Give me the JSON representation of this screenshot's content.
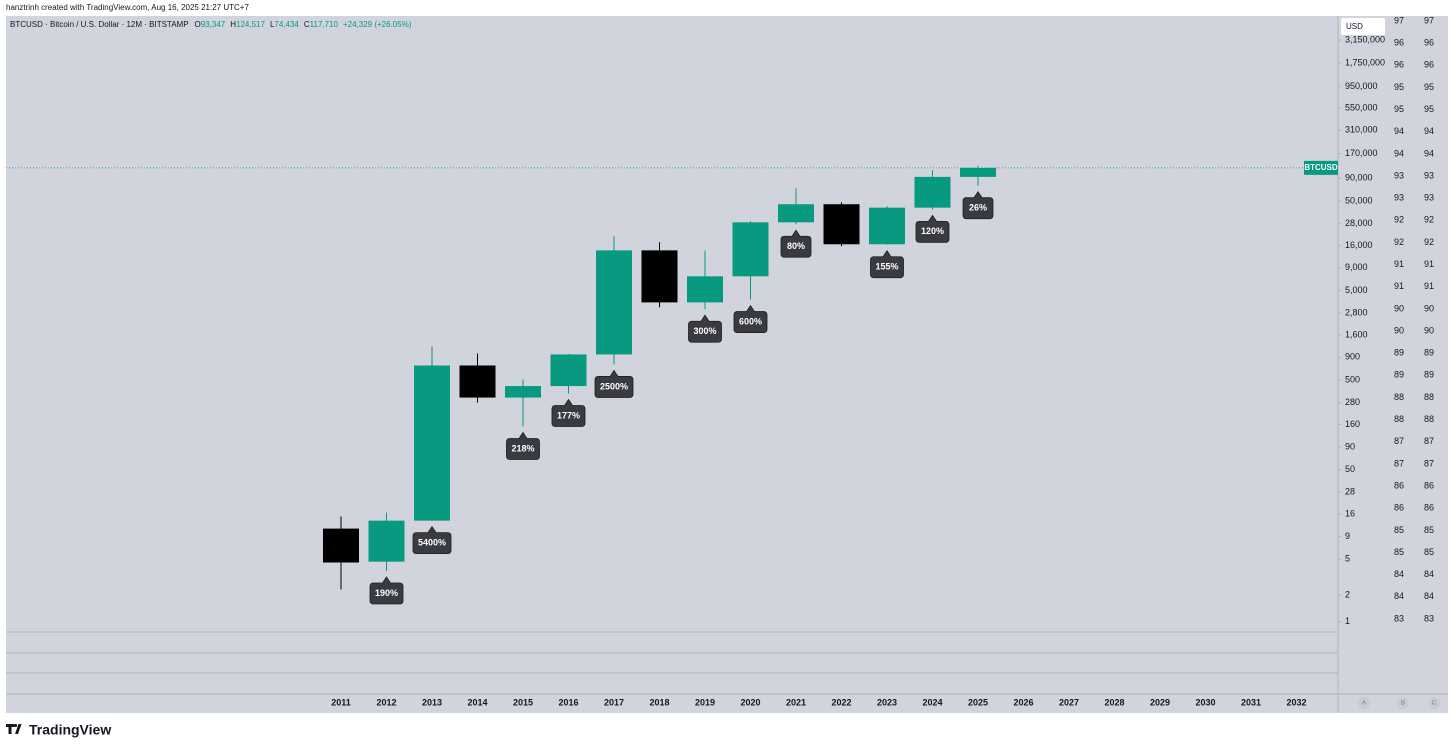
{
  "header": {
    "credit": "hanztrinh created with TradingView.com, Aug 16, 2025 21:27 UTC+7",
    "symbol": "BTCUSD · Bitcoin / U.S. Dollar · 12M · BITSTAMP",
    "ohlc": [
      {
        "label": "O",
        "value": "93,347"
      },
      {
        "label": "H",
        "value": "124,517"
      },
      {
        "label": "L",
        "value": "74,434"
      },
      {
        "label": "C",
        "value": "117,710"
      }
    ],
    "change": "+24,329 (+26.05%)"
  },
  "chart_data": {
    "type": "candlestick",
    "categories": [
      "2011",
      "2012",
      "2013",
      "2014",
      "2015",
      "2016",
      "2017",
      "2018",
      "2019",
      "2020",
      "2021",
      "2022",
      "2023",
      "2024",
      "2025",
      "2026",
      "2027",
      "2028",
      "2029",
      "2030",
      "2031",
      "2032"
    ],
    "open": [
      11,
      4.7,
      13.5,
      730,
      320,
      430,
      970,
      14100,
      3700,
      7230,
      29000,
      46200,
      16500,
      42300,
      93347,
      null,
      null,
      null,
      null,
      null,
      null,
      null
    ],
    "high": [
      15,
      16.6,
      1190,
      995,
      509,
      980,
      20300,
      17400,
      14000,
      29800,
      69700,
      48600,
      44000,
      111000,
      124517,
      null,
      null,
      null,
      null,
      null,
      null,
      null
    ],
    "low": [
      2.3,
      3.7,
      13.5,
      282,
      152,
      355,
      750,
      3250,
      3100,
      3980,
      27600,
      15700,
      16300,
      40500,
      74434,
      null,
      null,
      null,
      null,
      null,
      null,
      null
    ],
    "close": [
      4.6,
      13.5,
      730,
      320,
      430,
      970,
      14100,
      3700,
      7230,
      29000,
      46200,
      16500,
      42300,
      93347,
      117710,
      null,
      null,
      null,
      null,
      null,
      null,
      null
    ],
    "percent_labels": [
      null,
      "190%",
      "5400%",
      null,
      "218%",
      "177%",
      "2500%",
      null,
      "300%",
      "600%",
      "80%",
      null,
      "155%",
      "120%",
      "26%",
      null,
      null,
      null,
      null,
      null,
      null,
      null
    ],
    "up_color": "#089981",
    "down_color": "#000000",
    "log_scale": true,
    "ylim": [
      0.77,
      5850000
    ],
    "yticks": [
      {
        "value": 3150000,
        "label": "3,150,000"
      },
      {
        "value": 1750000,
        "label": "1,750,000"
      },
      {
        "value": 950000,
        "label": "950,000"
      },
      {
        "value": 550000,
        "label": "550,000"
      },
      {
        "value": 310000,
        "label": "310,000"
      },
      {
        "value": 170000,
        "label": "170,000"
      },
      {
        "value": 90000,
        "label": "90,000"
      },
      {
        "value": 50000,
        "label": "50,000"
      },
      {
        "value": 28000,
        "label": "28,000"
      },
      {
        "value": 16000,
        "label": "16,000"
      },
      {
        "value": 9000,
        "label": "9,000"
      },
      {
        "value": 5000,
        "label": "5,000"
      },
      {
        "value": 2800,
        "label": "2,800"
      },
      {
        "value": 1600,
        "label": "1,600"
      },
      900,
      500,
      280,
      160,
      90,
      50,
      28,
      16,
      9,
      5,
      2,
      1
    ],
    "currency": "USD",
    "price_label": "BTCUSD",
    "right_scale_a": [
      97,
      96,
      96,
      95,
      95,
      94,
      94,
      93,
      93,
      92,
      92,
      91,
      91,
      90,
      90,
      89,
      89,
      88,
      88,
      87,
      87,
      86,
      86,
      85,
      85,
      84,
      84,
      83
    ],
    "right_scale_b": [
      97,
      96,
      96,
      95,
      95,
      94,
      94,
      93,
      93,
      92,
      92,
      91,
      91,
      90,
      90,
      89,
      89,
      88,
      88,
      87,
      87,
      86,
      86,
      85,
      85,
      84,
      84,
      83
    ],
    "scale_buttons": [
      "A",
      "B",
      "C"
    ]
  },
  "footer": {
    "brand": "TradingView"
  }
}
